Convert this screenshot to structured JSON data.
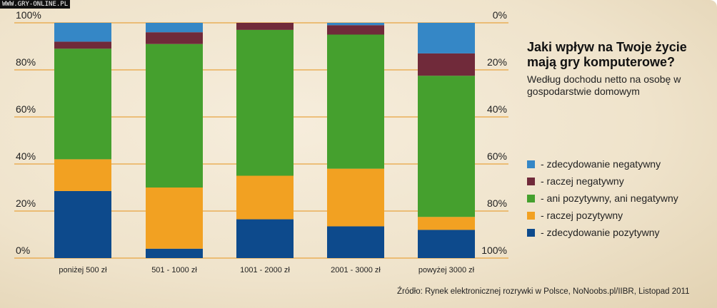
{
  "watermark": "WWW.GRY-ONLINE.PL",
  "title_line1": "Jaki wpływ na Twoje życie",
  "title_line2": "mają gry komputerowe?",
  "subtitle": "Według dochodu netto na osobę w gospodarstwie domowym",
  "source": "Źródło: Rynek elektronicznej rozrywki w Polsce, NoNoobs.pl/IIBR,  Listopad 2011",
  "chart_data": {
    "type": "bar",
    "stacked": true,
    "title": "Jaki wpływ na Twoje życie mają gry komputerowe?",
    "categories": [
      "poniżej 500 zł",
      "501 - 1000 zł",
      "1001 - 2000 zł",
      "2001 - 3000 zł",
      "powyżej 3000 zł"
    ],
    "left_ticks": [
      "0%",
      "20%",
      "40%",
      "60%",
      "80%",
      "100%"
    ],
    "right_ticks": [
      "100%",
      "80%",
      "60%",
      "40%",
      "20%",
      "0%"
    ],
    "ylim": [
      0,
      100
    ],
    "series": [
      {
        "name": "- zdecydowanie pozytywny",
        "color": "#0d4a8c",
        "values": [
          28.5,
          4,
          16.5,
          13.5,
          12
        ]
      },
      {
        "name": "- raczej pozytywny",
        "color": "#f2a122",
        "values": [
          13.5,
          26,
          18.5,
          24.5,
          5.5
        ]
      },
      {
        "name": "- ani pozytywny, ani negatywny",
        "color": "#45a02e",
        "values": [
          47,
          61,
          62,
          57,
          60
        ]
      },
      {
        "name": "- raczej negatywny",
        "color": "#702a3a",
        "values": [
          3,
          5,
          3,
          4,
          9.5
        ]
      },
      {
        "name": "- zdecydowanie negatywny",
        "color": "#3587c6",
        "values": [
          8,
          4,
          0,
          1,
          13
        ]
      }
    ],
    "legend_order": [
      4,
      3,
      2,
      1,
      0
    ],
    "legend": "right"
  }
}
